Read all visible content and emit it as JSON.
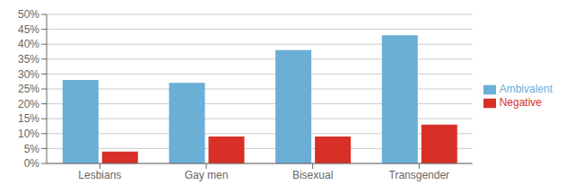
{
  "chart_data": {
    "type": "bar",
    "categories": [
      "Lesbians",
      "Gay men",
      "Bisexual",
      "Transgender"
    ],
    "series": [
      {
        "name": "Ambivalent",
        "color": "#6BAED6",
        "values": [
          28,
          27,
          38,
          43
        ]
      },
      {
        "name": "Negative",
        "color": "#D73027",
        "values": [
          4,
          9,
          9,
          13
        ]
      }
    ],
    "ylim": [
      0,
      50
    ],
    "yticks": [
      {
        "value": 0,
        "label": "0%"
      },
      {
        "value": 5,
        "label": "5%"
      },
      {
        "value": 10,
        "label": "10%"
      },
      {
        "value": 15,
        "label": "15%"
      },
      {
        "value": 20,
        "label": "20%"
      },
      {
        "value": 25,
        "label": "25%"
      },
      {
        "value": 30,
        "label": "30%"
      },
      {
        "value": 35,
        "label": "35%"
      },
      {
        "value": 40,
        "label": "40%"
      },
      {
        "value": 45,
        "label": "45%"
      },
      {
        "value": 50,
        "label": "50%"
      }
    ],
    "grid": true,
    "legend": "right"
  }
}
